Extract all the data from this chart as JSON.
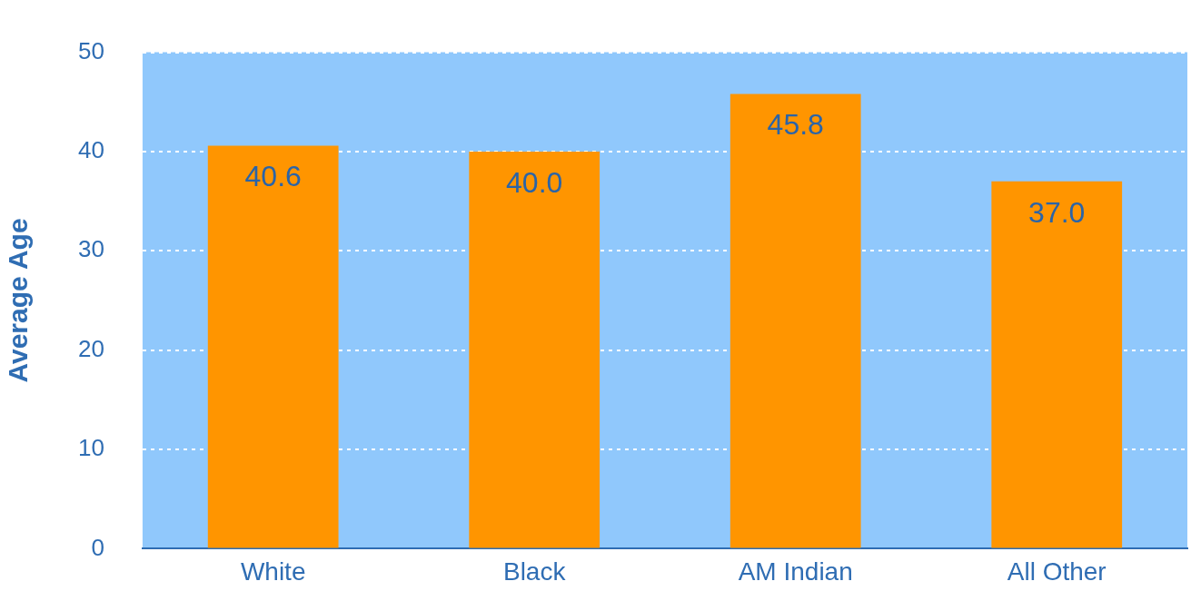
{
  "chart_data": {
    "type": "bar",
    "ylabel": "Average Age",
    "categories": [
      "White",
      "Black",
      "AM Indian",
      "All Other"
    ],
    "values": [
      40.6,
      40.0,
      45.8,
      37.0
    ],
    "color": "#ff9500",
    "value_labels": [
      "40.6",
      "40.0",
      "45.8",
      "37.0"
    ],
    "ylim": [
      0,
      50
    ],
    "yticks": [
      0,
      10,
      20,
      30,
      40,
      50
    ],
    "grid": true
  }
}
